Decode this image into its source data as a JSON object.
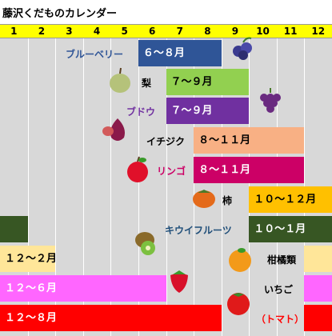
{
  "title": "藤沢くだものカレンダー",
  "months": [
    "1",
    "2",
    "3",
    "4",
    "5",
    "6",
    "7",
    "8",
    "9",
    "10",
    "11",
    "12"
  ],
  "chart_data": {
    "type": "bar",
    "title": "藤沢くだものカレンダー",
    "x_axis": "month",
    "xlim": [
      1,
      12
    ],
    "items": [
      {
        "fruit": "ブルーベリー",
        "season_label": "６～８月",
        "segments": [
          [
            6,
            8
          ]
        ],
        "color": "#2f5597",
        "label_color": "#2f5597",
        "text_color": "#ffffff"
      },
      {
        "fruit": "梨",
        "season_label": "７～９月",
        "segments": [
          [
            7,
            9
          ]
        ],
        "color": "#92d050",
        "label_color": "#000000",
        "text_color": "#000000"
      },
      {
        "fruit": "ブドウ",
        "season_label": "７～９月",
        "segments": [
          [
            7,
            9
          ]
        ],
        "color": "#7030a0",
        "label_color": "#7030a0",
        "text_color": "#ffffff"
      },
      {
        "fruit": "イチジク",
        "season_label": "８～１１月",
        "segments": [
          [
            8,
            11
          ]
        ],
        "color": "#f8b084",
        "label_color": "#000000",
        "text_color": "#000000"
      },
      {
        "fruit": "リンゴ",
        "season_label": "８～１１月",
        "segments": [
          [
            8,
            11
          ]
        ],
        "color": "#cc0066",
        "label_color": "#cc0066",
        "text_color": "#ffffff"
      },
      {
        "fruit": "柿",
        "season_label": "１０～１２月",
        "segments": [
          [
            10,
            12
          ]
        ],
        "color": "#ffc000",
        "label_color": "#000000",
        "text_color": "#000000"
      },
      {
        "fruit": "キウイフルーツ",
        "season_label": "１０～１月",
        "segments": [
          [
            10,
            12
          ],
          [
            1,
            1
          ]
        ],
        "color": "#375623",
        "label_color": "#1f4e79",
        "text_color": "#ffffff"
      },
      {
        "fruit": "柑橘類",
        "season_label": "１２～２月",
        "segments": [
          [
            12,
            12
          ],
          [
            1,
            2
          ]
        ],
        "color": "#ffe699",
        "label_color": "#000000",
        "text_color": "#000000"
      },
      {
        "fruit": "いちご",
        "season_label": "１２～６月",
        "segments": [
          [
            12,
            12
          ],
          [
            1,
            6
          ]
        ],
        "color": "#ff66ff",
        "label_color": "#000000",
        "text_color": "#ffffff"
      },
      {
        "fruit": "（トマト）",
        "season_label": "１２～８月",
        "segments": [
          [
            12,
            12
          ],
          [
            1,
            8
          ]
        ],
        "color": "#ff0000",
        "label_color": "#ff0000",
        "text_color": "#ffffff"
      }
    ]
  }
}
